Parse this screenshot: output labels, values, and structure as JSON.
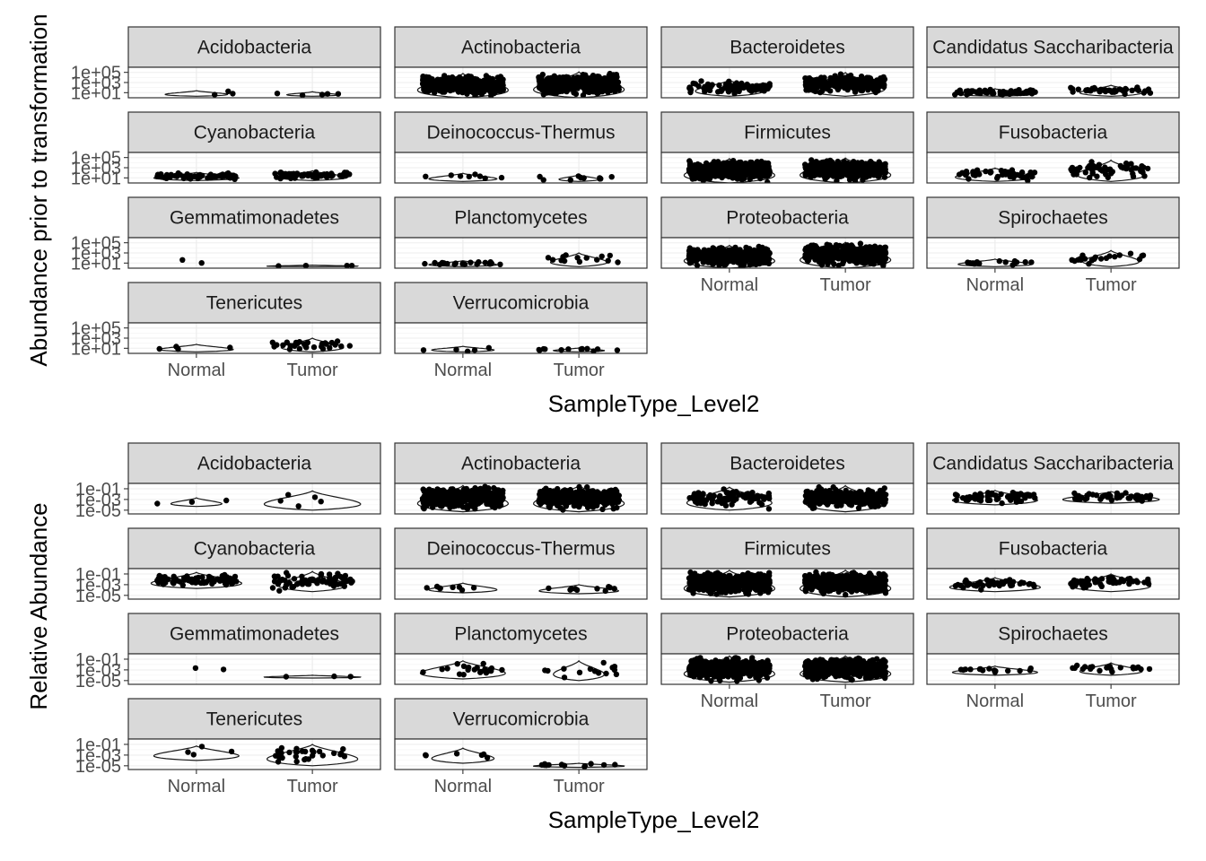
{
  "chart_data": [
    {
      "type": "scatter",
      "subtype": "faceted violin + jitter",
      "ylabel": "Abundance prior to transformation",
      "xlabel": "SampleType_Level2",
      "y_scale": "log10",
      "y_ticks": [
        "1e+01",
        "1e+03",
        "1e+05"
      ],
      "ylim": [
        1,
        1000000
      ],
      "categories": [
        "Normal",
        "Tumor"
      ],
      "facets": [
        {
          "name": "Acidobacteria",
          "n": [
            3,
            5
          ],
          "y_range": [
            [
              2,
              25
            ],
            [
              2,
              15
            ]
          ],
          "violin_width": [
            0.55,
            0.45
          ]
        },
        {
          "name": "Actinobacteria",
          "n": [
            420,
            420
          ],
          "y_range": [
            [
              1,
              60000
            ],
            [
              1,
              120000
            ]
          ],
          "violin_width": [
            0.8,
            0.8
          ]
        },
        {
          "name": "Bacteroidetes",
          "n": [
            90,
            260
          ],
          "y_range": [
            [
              2,
              3000
            ],
            [
              2,
              90000
            ]
          ],
          "violin_width": [
            0.6,
            0.7
          ]
        },
        {
          "name": "Candidatus Saccharibacteria",
          "n": [
            60,
            45
          ],
          "y_range": [
            [
              2,
              60
            ],
            [
              2,
              300
            ]
          ],
          "violin_width": [
            0.7,
            0.55
          ]
        },
        {
          "name": "Cyanobacteria",
          "n": [
            70,
            70
          ],
          "y_range": [
            [
              3,
              120
            ],
            [
              3,
              250
            ]
          ],
          "violin_width": [
            0.75,
            0.6
          ]
        },
        {
          "name": "Deinococcus-Thermus",
          "n": [
            8,
            10
          ],
          "y_range": [
            [
              2,
              80
            ],
            [
              2,
              40
            ]
          ],
          "violin_width": [
            0.6,
            0.35
          ]
        },
        {
          "name": "Firmicutes",
          "n": [
            500,
            500
          ],
          "y_range": [
            [
              1,
              60000
            ],
            [
              1,
              80000
            ]
          ],
          "violin_width": [
            0.8,
            0.8
          ]
        },
        {
          "name": "Fusobacteria",
          "n": [
            45,
            55
          ],
          "y_range": [
            [
              2,
              900
            ],
            [
              2,
              30000
            ]
          ],
          "violin_width": [
            0.7,
            0.6
          ]
        },
        {
          "name": "Gemmatimonadetes",
          "n": [
            2,
            4
          ],
          "y_range": [
            [
              2,
              200
            ],
            [
              2,
              4
            ]
          ],
          "violin_width": [
            0.0,
            0.8
          ]
        },
        {
          "name": "Planctomycetes",
          "n": [
            20,
            14
          ],
          "y_range": [
            [
              2,
              30
            ],
            [
              2,
              1000
            ]
          ],
          "violin_width": [
            0.6,
            0.5
          ]
        },
        {
          "name": "Proteobacteria",
          "n": [
            500,
            500
          ],
          "y_range": [
            [
              1,
              30000
            ],
            [
              1,
              120000
            ]
          ],
          "violin_width": [
            0.8,
            0.8
          ]
        },
        {
          "name": "Spirochaetes",
          "n": [
            15,
            20
          ],
          "y_range": [
            [
              2,
              60
            ],
            [
              2,
              3000
            ]
          ],
          "violin_width": [
            0.65,
            0.5
          ]
        },
        {
          "name": "Tenericutes",
          "n": [
            4,
            30
          ],
          "y_range": [
            [
              2,
              60
            ],
            [
              2,
              1000
            ]
          ],
          "violin_width": [
            0.65,
            0.55
          ]
        },
        {
          "name": "Verrucomicrobia",
          "n": [
            5,
            12
          ],
          "y_range": [
            [
              2,
              25
            ],
            [
              2,
              12
            ]
          ],
          "violin_width": [
            0.55,
            0.45
          ]
        }
      ]
    },
    {
      "type": "scatter",
      "subtype": "faceted violin + jitter",
      "ylabel": "Relative Abundance",
      "xlabel": "SampleType_Level2",
      "y_scale": "log10",
      "y_ticks": [
        "1e-01",
        "1e-03",
        "1e-05"
      ],
      "ylim": [
        2e-06,
        1
      ],
      "categories": [
        "Normal",
        "Tumor"
      ],
      "facets": [
        {
          "name": "Acidobacteria",
          "n": [
            3,
            5
          ],
          "y_range": [
            [
              5e-05,
              0.002
            ],
            [
              1e-05,
              0.04
            ]
          ],
          "violin_width": [
            0.45,
            0.85
          ]
        },
        {
          "name": "Actinobacteria",
          "n": [
            420,
            420
          ],
          "y_range": [
            [
              5e-06,
              0.4
            ],
            [
              5e-06,
              0.4
            ]
          ],
          "violin_width": [
            0.8,
            0.8
          ]
        },
        {
          "name": "Bacteroidetes",
          "n": [
            90,
            260
          ],
          "y_range": [
            [
              1e-05,
              0.2
            ],
            [
              5e-06,
              0.4
            ]
          ],
          "violin_width": [
            0.75,
            0.7
          ]
        },
        {
          "name": "Candidatus Saccharibacteria",
          "n": [
            60,
            45
          ],
          "y_range": [
            [
              0.0001,
              0.05
            ],
            [
              0.0002,
              0.03
            ]
          ],
          "violin_width": [
            0.75,
            0.85
          ]
        },
        {
          "name": "Cyanobacteria",
          "n": [
            70,
            70
          ],
          "y_range": [
            [
              0.0002,
              0.2
            ],
            [
              5e-05,
              0.3
            ]
          ],
          "violin_width": [
            0.8,
            0.6
          ]
        },
        {
          "name": "Deinococcus-Thermus",
          "n": [
            8,
            10
          ],
          "y_range": [
            [
              3e-05,
              0.002
            ],
            [
              2e-05,
              0.001
            ]
          ],
          "violin_width": [
            0.6,
            0.7
          ]
        },
        {
          "name": "Firmicutes",
          "n": [
            500,
            500
          ],
          "y_range": [
            [
              5e-06,
              0.5
            ],
            [
              5e-06,
              0.5
            ]
          ],
          "violin_width": [
            0.8,
            0.8
          ]
        },
        {
          "name": "Fusobacteria",
          "n": [
            45,
            55
          ],
          "y_range": [
            [
              5e-05,
              0.02
            ],
            [
              5e-05,
              0.1
            ]
          ],
          "violin_width": [
            0.8,
            0.7
          ]
        },
        {
          "name": "Gemmatimonadetes",
          "n": [
            2,
            3
          ],
          "y_range": [
            [
              0.0001,
              0.03
            ],
            [
              3e-05,
              0.0001
            ]
          ],
          "violin_width": [
            0.0,
            0.85
          ]
        },
        {
          "name": "Planctomycetes",
          "n": [
            20,
            14
          ],
          "y_range": [
            [
              2e-05,
              0.05
            ],
            [
              1e-05,
              0.05
            ]
          ],
          "violin_width": [
            0.75,
            0.45
          ]
        },
        {
          "name": "Proteobacteria",
          "n": [
            500,
            500
          ],
          "y_range": [
            [
              5e-06,
              0.4
            ],
            [
              5e-06,
              0.4
            ]
          ],
          "violin_width": [
            0.8,
            0.8
          ]
        },
        {
          "name": "Spirochaetes",
          "n": [
            15,
            20
          ],
          "y_range": [
            [
              0.0001,
              0.005
            ],
            [
              0.0001,
              0.02
            ]
          ],
          "violin_width": [
            0.75,
            0.55
          ]
        },
        {
          "name": "Tenericutes",
          "n": [
            4,
            30
          ],
          "y_range": [
            [
              0.0001,
              0.05
            ],
            [
              1e-05,
              0.1
            ]
          ],
          "violin_width": [
            0.75,
            0.8
          ]
        },
        {
          "name": "Verrucomicrobia",
          "n": [
            6,
            12
          ],
          "y_range": [
            [
              3e-05,
              0.02
            ],
            [
              5e-06,
              3e-05
            ]
          ],
          "violin_width": [
            0.55,
            0.8
          ]
        }
      ]
    }
  ]
}
